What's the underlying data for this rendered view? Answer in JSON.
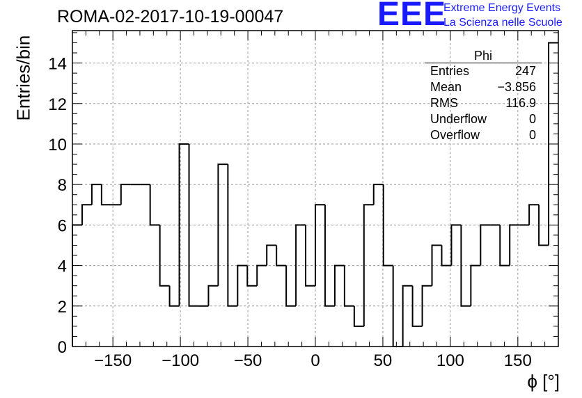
{
  "title": "ROMA-02-2017-10-19-00047",
  "logo": {
    "big": "EEE",
    "line1": "Extreme Energy Events",
    "line2": "La Scienza nelle Scuole"
  },
  "stats": {
    "title": "Phi",
    "rows": [
      {
        "label": "Entries",
        "value": "247"
      },
      {
        "label": "Mean",
        "value": "−3.856"
      },
      {
        "label": "RMS",
        "value": "116.9"
      },
      {
        "label": "Underflow",
        "value": "0"
      },
      {
        "label": "Overflow",
        "value": "0"
      }
    ]
  },
  "chart_data": {
    "type": "histogram",
    "title": "ROMA-02-2017-10-19-00047",
    "xlabel": "ϕ [°]",
    "ylabel": "Entries/bin",
    "xlim": [
      -180,
      180
    ],
    "ylim": [
      0,
      15.6
    ],
    "bin_width": 7.2,
    "bin_start": -180,
    "values": [
      6,
      7,
      8,
      7,
      7,
      8,
      8,
      8,
      6,
      3,
      2,
      10,
      2,
      2,
      3,
      9,
      2,
      4,
      3,
      4,
      5,
      4,
      2,
      6,
      3,
      7,
      2,
      4,
      2,
      1,
      7,
      8,
      4,
      0,
      3,
      1,
      3,
      5,
      4,
      6,
      2,
      4,
      6,
      6,
      4,
      6,
      6,
      7,
      5,
      15
    ],
    "xticks": [
      -150,
      -100,
      -50,
      0,
      50,
      100,
      150
    ],
    "xtick_labels": [
      "−150",
      "−100",
      "−50",
      "0",
      "50",
      "100",
      "150"
    ],
    "yticks": [
      0,
      2,
      4,
      6,
      8,
      10,
      12,
      14
    ],
    "ytick_labels": [
      "0",
      "2",
      "4",
      "6",
      "8",
      "10",
      "12",
      "14"
    ],
    "grid": true,
    "color": "#000000"
  }
}
